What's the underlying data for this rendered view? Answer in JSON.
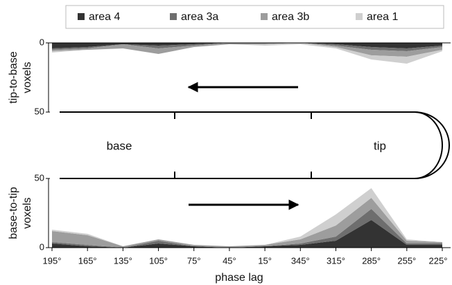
{
  "chart_data": {
    "type": "area",
    "categories": [
      "195°",
      "165°",
      "135°",
      "105°",
      "75°",
      "45°",
      "15°",
      "345°",
      "315°",
      "285°",
      "255°",
      "225°"
    ],
    "xlabel": "phase lag",
    "series": [
      {
        "name": "area 4",
        "color": "#333333"
      },
      {
        "name": "area 3a",
        "color": "#6e6e6e"
      },
      {
        "name": "area 3b",
        "color": "#9d9d9d"
      },
      {
        "name": "area 1",
        "color": "#cfcfcf"
      }
    ],
    "panels": [
      {
        "ylabel": [
          "tip-to-base",
          "voxels"
        ],
        "ylim": [
          0,
          50
        ],
        "yticks": [
          0,
          50
        ],
        "inverted": true,
        "values": [
          [
            4,
            3,
            1,
            2,
            1,
            0,
            0,
            0,
            1,
            3,
            4,
            2
          ],
          [
            1,
            1,
            0,
            2,
            1,
            0,
            0,
            0,
            1,
            2,
            2,
            1
          ],
          [
            1,
            1,
            3,
            4,
            1,
            1,
            1,
            0,
            1,
            4,
            4,
            2
          ],
          [
            1,
            0,
            0,
            0,
            0,
            0,
            1,
            1,
            1,
            3,
            5,
            1
          ]
        ]
      },
      {
        "ylabel": [
          "base-to-tip",
          "voxels"
        ],
        "ylim": [
          0,
          50
        ],
        "yticks": [
          0,
          50
        ],
        "inverted": false,
        "values": [
          [
            3,
            1,
            0,
            3,
            1,
            0,
            1,
            2,
            5,
            20,
            2,
            2
          ],
          [
            1,
            1,
            0,
            2,
            0,
            0,
            0,
            1,
            3,
            8,
            1,
            1
          ],
          [
            8,
            7,
            1,
            1,
            1,
            1,
            1,
            3,
            8,
            8,
            2,
            1
          ],
          [
            1,
            1,
            0,
            0,
            0,
            0,
            0,
            2,
            8,
            7,
            1,
            0
          ]
        ]
      }
    ],
    "annotations": {
      "base": "base",
      "tip": "tip"
    }
  }
}
